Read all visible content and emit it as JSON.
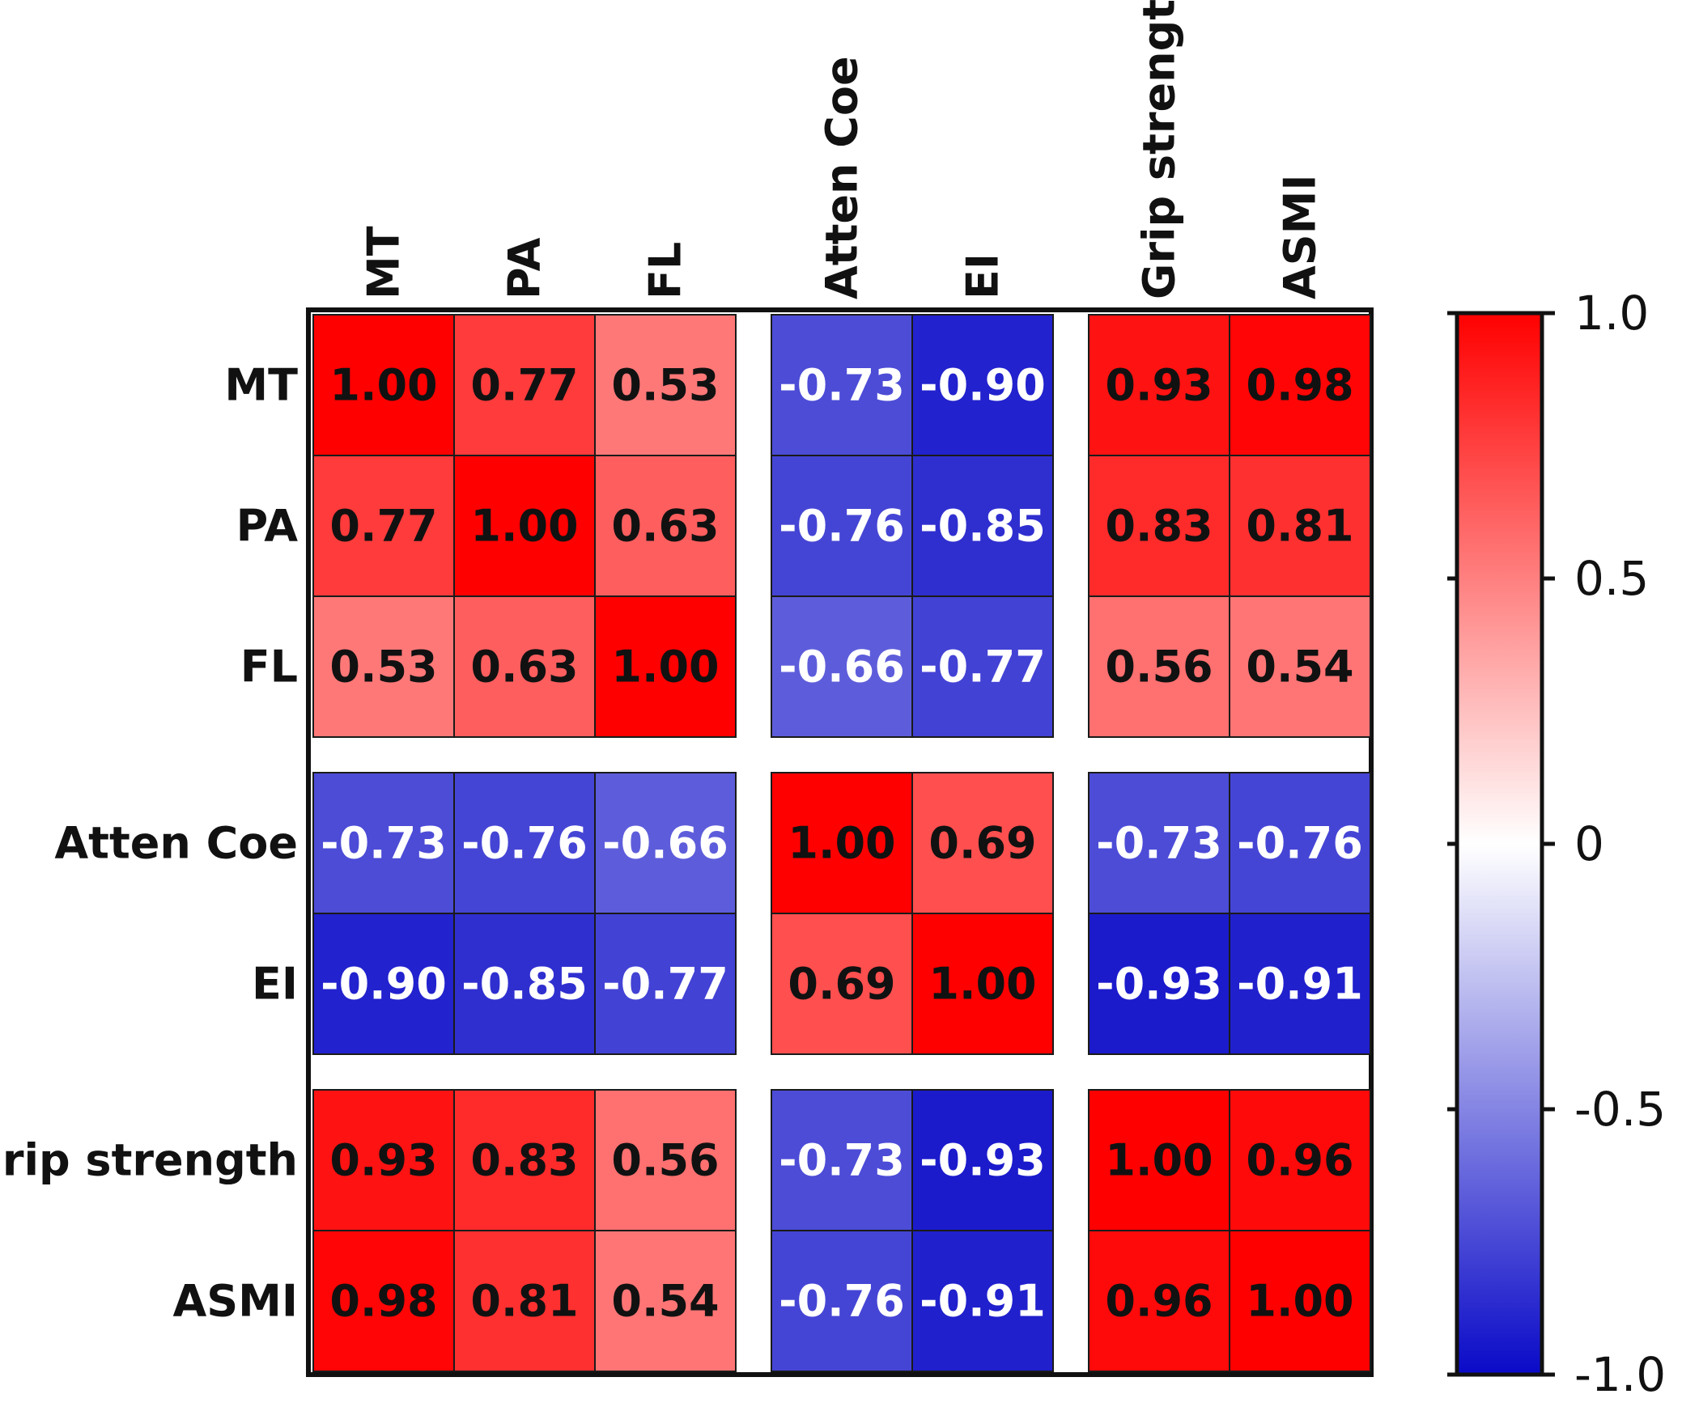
{
  "chart_data": {
    "type": "heatmap",
    "title": "",
    "variables": [
      "MT",
      "PA",
      "FL",
      "Atten Coe",
      "EI",
      "Grip strength",
      "ASMI"
    ],
    "groups": [
      [
        "MT",
        "PA",
        "FL"
      ],
      [
        "Atten Coe",
        "EI"
      ],
      [
        "Grip strength",
        "ASMI"
      ]
    ],
    "value_labels": [
      [
        "1.00",
        "0.77",
        "0.53",
        "-0.73",
        "-0.90",
        "0.93",
        "0.98"
      ],
      [
        "0.77",
        "1.00",
        "0.63",
        "-0.76",
        "-0.85",
        "0.83",
        "0.81"
      ],
      [
        "0.53",
        "0.63",
        "1.00",
        "-0.66",
        "-0.77",
        "0.56",
        "0.54"
      ],
      [
        "-0.73",
        "-0.76",
        "-0.66",
        "1.00",
        "0.69",
        "-0.73",
        "-0.76"
      ],
      [
        "-0.90",
        "-0.85",
        "-0.77",
        "0.69",
        "1.00",
        "-0.93",
        "-0.91"
      ],
      [
        "0.93",
        "0.83",
        "0.56",
        "-0.73",
        "-0.93",
        "1.00",
        "0.96"
      ],
      [
        "0.98",
        "0.81",
        "0.54",
        "-0.76",
        "-0.91",
        "0.96",
        "1.00"
      ]
    ],
    "color_scale": {
      "range": [
        -1.0,
        1.0
      ],
      "low_color": "#0a0ac8",
      "mid_color": "#ffffff",
      "high_color": "#ff0000",
      "ticks": [
        1.0,
        0.5,
        0,
        -0.5,
        -1.0
      ],
      "tick_labels": [
        "1.0",
        "0.5",
        "0",
        "-0.5",
        "-1.0"
      ]
    },
    "legend_placement": "right"
  }
}
